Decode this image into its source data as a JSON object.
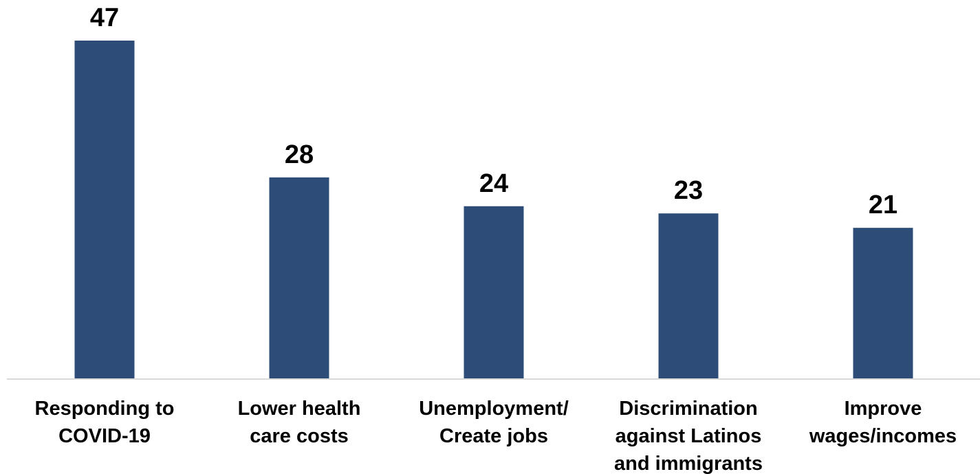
{
  "chart_data": {
    "type": "bar",
    "categories": [
      [
        "Responding to",
        "COVID-19"
      ],
      [
        "Lower health",
        "care costs"
      ],
      [
        "Unemployment/",
        "Create jobs"
      ],
      [
        "Discrimination",
        "against Latinos",
        "and immigrants"
      ],
      [
        "Improve",
        "wages/incomes"
      ]
    ],
    "values": [
      47,
      28,
      24,
      23,
      21
    ],
    "title": "",
    "xlabel": "",
    "ylabel": "",
    "ylim": [
      0,
      47
    ],
    "grid": false,
    "legend": "none",
    "bar_color": "#2d4c77",
    "data_labels": true
  }
}
